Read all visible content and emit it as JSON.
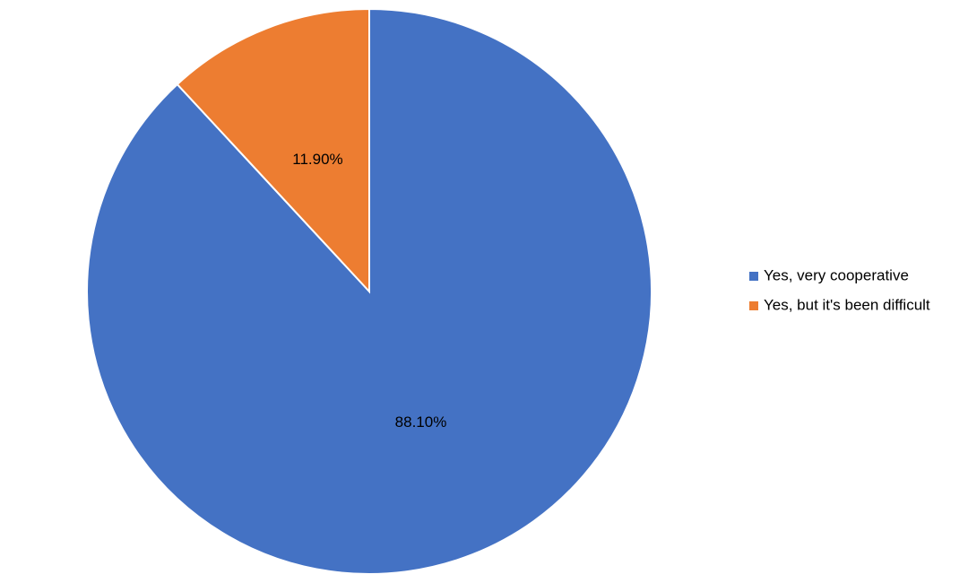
{
  "chart_data": {
    "type": "pie",
    "categories": [
      "Yes, very cooperative",
      "Yes, but it's been difficult"
    ],
    "values": [
      88.1,
      11.9
    ],
    "value_labels": [
      "88.10%",
      "11.90%"
    ],
    "colors": [
      "#4472c4",
      "#ed7d31"
    ],
    "legend": "right"
  }
}
